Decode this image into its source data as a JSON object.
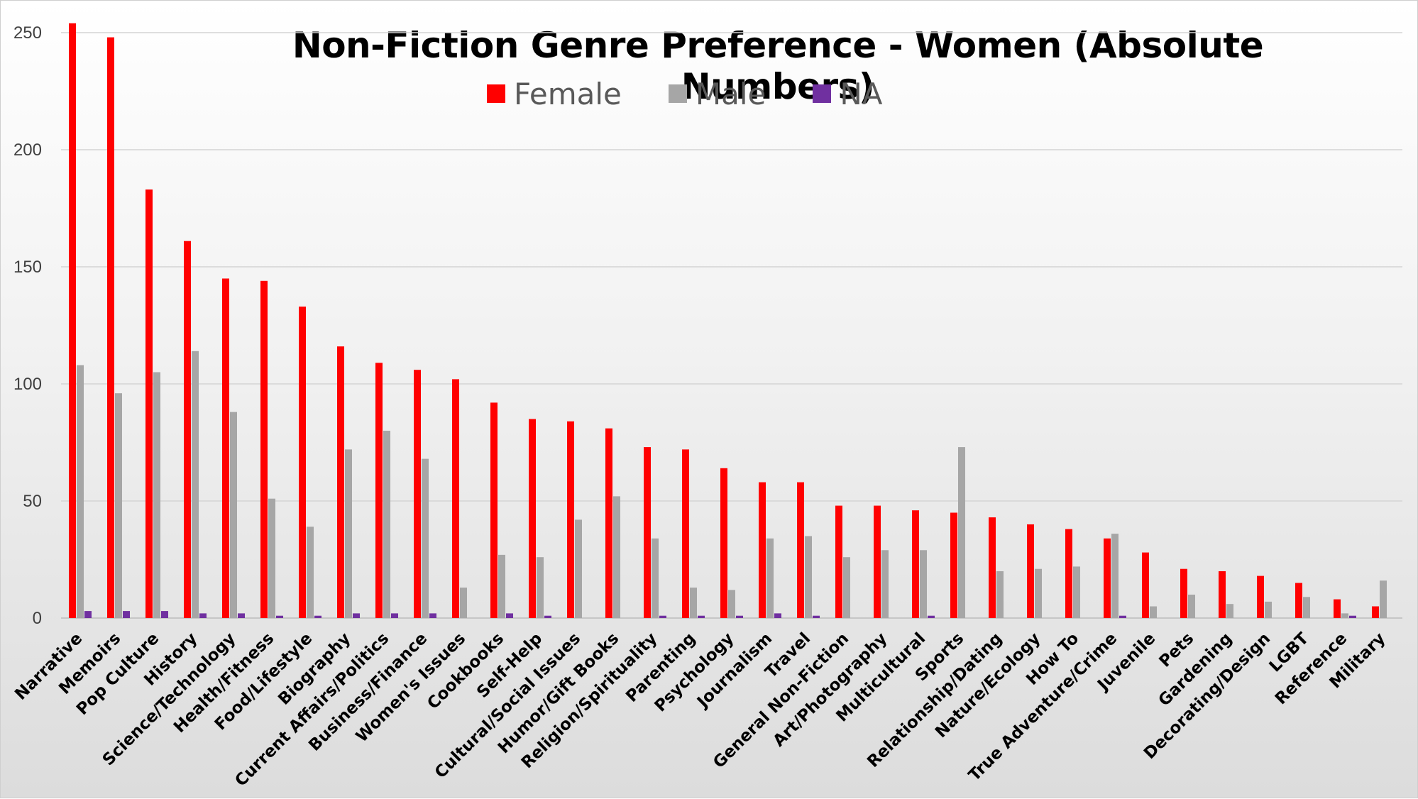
{
  "chart_data": {
    "type": "bar",
    "title": "Non-Fiction Genre Preference - Women (Absolute Numbers)",
    "xlabel": "",
    "ylabel": "",
    "ylim": [
      0,
      250
    ],
    "yticks": [
      "0",
      "50",
      "100",
      "150",
      "200",
      "250"
    ],
    "grid": true,
    "legend_position": "top",
    "categories": [
      "Narrative",
      "Memoirs",
      "Pop Culture",
      "History",
      "Science/Technology",
      "Health/Fitness",
      "Food/Lifestyle",
      "Biography",
      "Current Affairs/Politics",
      "Business/Finance",
      "Women's Issues",
      "Cookbooks",
      "Self-Help",
      "Cultural/Social Issues",
      "Humor/Gift Books",
      "Religion/Spirituality",
      "Parenting",
      "Psychology",
      "Journalism",
      "Travel",
      "General Non-Fiction",
      "Art/Photography",
      "Multicultural",
      "Sports",
      "Relationship/Dating",
      "Nature/Ecology",
      "How To",
      "True Adventure/Crime",
      "Juvenile",
      "Pets",
      "Gardening",
      "Decorating/Design",
      "LGBT",
      "Reference",
      "Military"
    ],
    "series": [
      {
        "name": "Female",
        "color": "#ff0000",
        "values": [
          254,
          248,
          183,
          161,
          145,
          144,
          133,
          116,
          109,
          106,
          102,
          92,
          85,
          84,
          81,
          73,
          72,
          64,
          58,
          58,
          48,
          48,
          46,
          45,
          43,
          40,
          38,
          34,
          28,
          21,
          20,
          18,
          15,
          8,
          5
        ]
      },
      {
        "name": "Male",
        "color": "#a6a6a6",
        "values": [
          108,
          96,
          105,
          114,
          88,
          51,
          39,
          72,
          80,
          68,
          13,
          27,
          26,
          42,
          52,
          34,
          13,
          12,
          34,
          35,
          26,
          29,
          29,
          73,
          20,
          21,
          22,
          36,
          5,
          10,
          6,
          7,
          9,
          2,
          16
        ]
      },
      {
        "name": "NA",
        "color": "#7030a0",
        "values": [
          3,
          3,
          3,
          2,
          2,
          1,
          1,
          2,
          2,
          2,
          0,
          2,
          1,
          0,
          0,
          1,
          1,
          1,
          2,
          1,
          0,
          0,
          1,
          0,
          0,
          0,
          0,
          1,
          0,
          0,
          0,
          0,
          0,
          1,
          0
        ]
      }
    ]
  }
}
